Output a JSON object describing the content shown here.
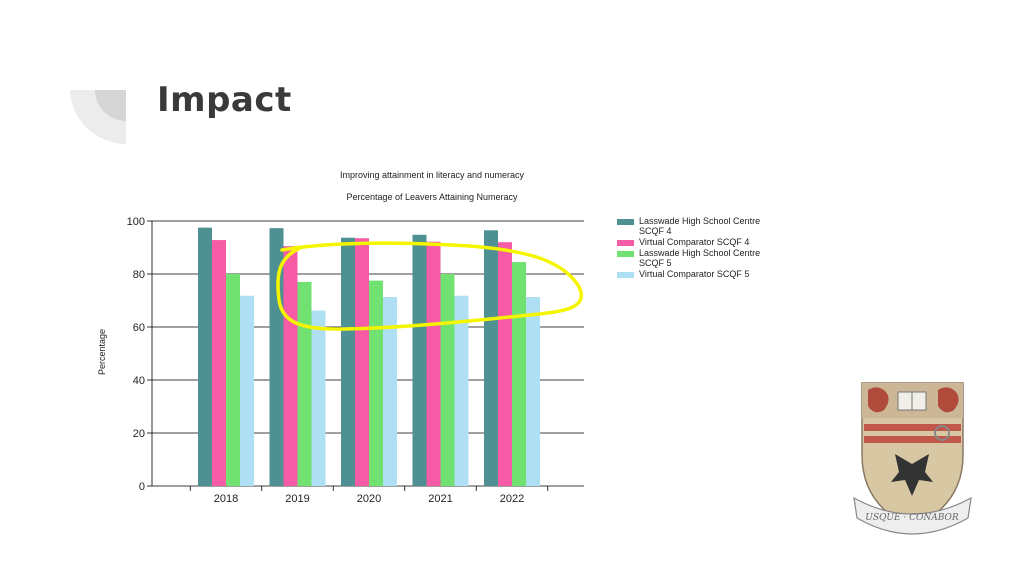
{
  "slide": {
    "title": "Impact"
  },
  "colors": {
    "deco_arc": "#e6e6e6",
    "highlight": "#f5f500"
  },
  "crest": {
    "motto": "USQUE CONABOR"
  },
  "chart_data": {
    "type": "bar",
    "title": "Improving attainment in literacy and numeracy",
    "subtitle": "Percentage of Leavers Attaining Numeracy",
    "xlabel": "",
    "ylabel": "Percentage",
    "ylim": [
      0,
      100
    ],
    "yticks": [
      0,
      20,
      40,
      60,
      80,
      100
    ],
    "grid": true,
    "legend_position": "right",
    "categories": [
      "2018",
      "2019",
      "2020",
      "2021",
      "2022"
    ],
    "series": [
      {
        "name": "Lasswade High School Centre SCQF 4",
        "color": "#4f9192",
        "values": [
          97.5,
          97.3,
          93.7,
          94.8,
          96.5
        ]
      },
      {
        "name": "Virtual Comparator SCQF 4",
        "color": "#f65ba5",
        "values": [
          92.8,
          90.5,
          93.5,
          92.2,
          92.0
        ]
      },
      {
        "name": "Lasswade High School Centre SCQF 5",
        "color": "#71e171",
        "values": [
          80.0,
          77.0,
          77.5,
          80.0,
          84.5
        ]
      },
      {
        "name": "Virtual Comparator SCQF 5",
        "color": "#aedff2",
        "values": [
          71.8,
          66.2,
          71.3,
          71.8,
          71.3
        ]
      }
    ]
  }
}
